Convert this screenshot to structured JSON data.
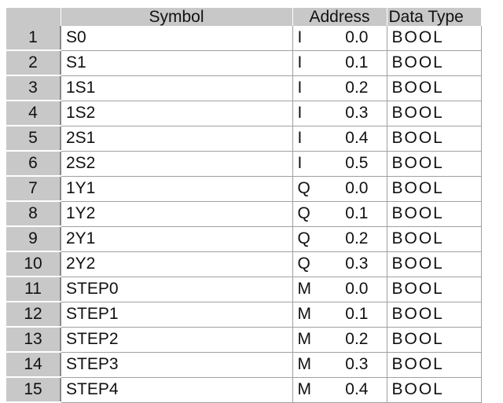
{
  "headers": {
    "row": "",
    "symbol": "Symbol",
    "address": "Address",
    "data_type": "Data Type"
  },
  "rows": [
    {
      "n": "1",
      "symbol": "S0",
      "area": "I",
      "offset": "0.0",
      "type": "BOOL"
    },
    {
      "n": "2",
      "symbol": "S1",
      "area": "I",
      "offset": "0.1",
      "type": "BOOL"
    },
    {
      "n": "3",
      "symbol": "1S1",
      "area": "I",
      "offset": "0.2",
      "type": "BOOL"
    },
    {
      "n": "4",
      "symbol": "1S2",
      "area": "I",
      "offset": "0.3",
      "type": "BOOL"
    },
    {
      "n": "5",
      "symbol": "2S1",
      "area": "I",
      "offset": "0.4",
      "type": "BOOL"
    },
    {
      "n": "6",
      "symbol": "2S2",
      "area": "I",
      "offset": "0.5",
      "type": "BOOL"
    },
    {
      "n": "7",
      "symbol": "1Y1",
      "area": "Q",
      "offset": "0.0",
      "type": "BOOL"
    },
    {
      "n": "8",
      "symbol": "1Y2",
      "area": "Q",
      "offset": "0.1",
      "type": "BOOL"
    },
    {
      "n": "9",
      "symbol": "2Y1",
      "area": "Q",
      "offset": "0.2",
      "type": "BOOL"
    },
    {
      "n": "10",
      "symbol": "2Y2",
      "area": "Q",
      "offset": "0.3",
      "type": "BOOL"
    },
    {
      "n": "11",
      "symbol": "STEP0",
      "area": "M",
      "offset": "0.0",
      "type": "BOOL"
    },
    {
      "n": "12",
      "symbol": "STEP1",
      "area": "M",
      "offset": "0.1",
      "type": "BOOL"
    },
    {
      "n": "13",
      "symbol": "STEP2",
      "area": "M",
      "offset": "0.2",
      "type": "BOOL"
    },
    {
      "n": "14",
      "symbol": "STEP3",
      "area": "M",
      "offset": "0.3",
      "type": "BOOL"
    },
    {
      "n": "15",
      "symbol": "STEP4",
      "area": "M",
      "offset": "0.4",
      "type": "BOOL"
    }
  ]
}
